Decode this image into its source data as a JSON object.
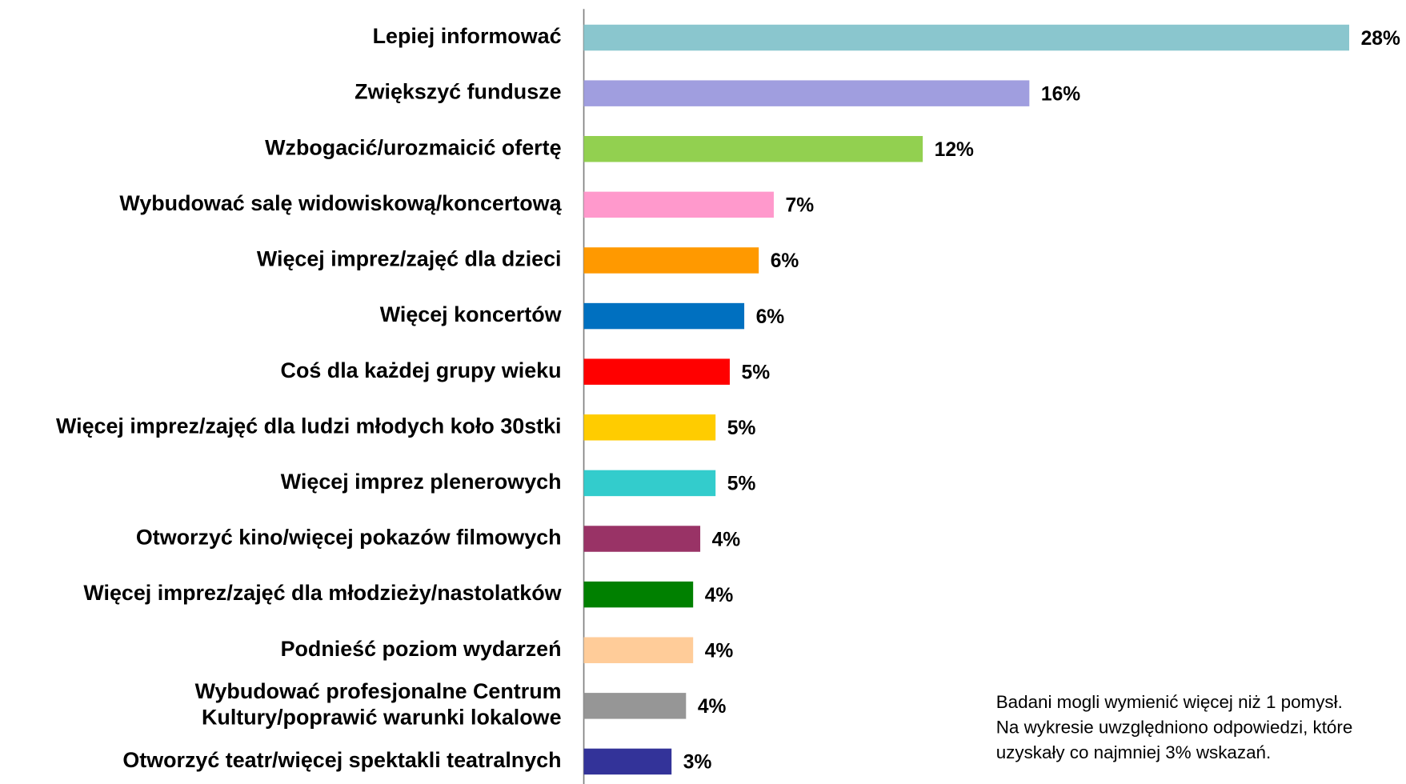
{
  "chart_data": {
    "type": "bar",
    "orientation": "horizontal",
    "categories": [
      "Lepiej informować",
      "Zwiększyć fundusze",
      "Wzbogacić/urozmaicić ofertę",
      "Wybudować salę widowiskową/koncertową",
      "Więcej imprez/zajęć dla dzieci",
      "Więcej koncertów",
      "Coś dla każdej grupy wieku",
      "Więcej imprez/zajęć dla ludzi młodych koło 30stki",
      "Więcej imprez plenerowych",
      "Otworzyć kino/więcej pokazów filmowych",
      "Więcej imprez/zajęć dla młodzieży/nastolatków",
      "Podnieść poziom wydarzeń",
      [
        "Wybudować profesjonalne Centrum",
        "Kultury/poprawić warunki lokalowe"
      ],
      "Otworzyć teatr/więcej spektakli teatralnych"
    ],
    "values": [
      28,
      16.3,
      12.4,
      6.95,
      6.4,
      5.87,
      5.34,
      4.82,
      4.82,
      4.26,
      4,
      4,
      3.74,
      3.21
    ],
    "value_labels": [
      "28%",
      "16%",
      "12%",
      "7%",
      "6%",
      "6%",
      "5%",
      "5%",
      "5%",
      "4%",
      "4%",
      "4%",
      "4%",
      "3%"
    ],
    "colors": [
      "#8AC6CE",
      "#A09EDF",
      "#92D050",
      "#FF99CC",
      "#FF9900",
      "#0070C0",
      "#FF0000",
      "#FFCC00",
      "#33CCCC",
      "#993366",
      "#008000",
      "#FFCC99",
      "#969696",
      "#333399"
    ],
    "xlim": [
      0,
      30
    ],
    "notes": [
      "Badani mogli wymienić więcej niż 1 pomysł.",
      "Na wykresie uwzględniono odpowiedzi, które",
      "uzyskały co najmniej 3% wskazań."
    ]
  }
}
